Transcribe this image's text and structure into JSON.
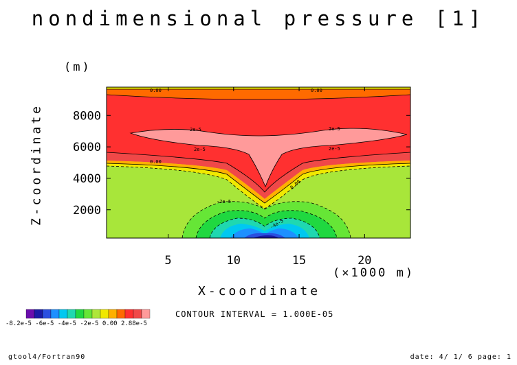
{
  "chart_data": {
    "type": "heatmap",
    "title": "nondimensional pressure [1]",
    "xlabel": "X-coordinate",
    "xunit": "(×1000 m)",
    "ylabel": "Z-coordinate",
    "yunit": "(m)",
    "xlim": [
      0.3,
      23.5
    ],
    "ylim": [
      200,
      9800
    ],
    "x_ticks": [
      5,
      10,
      15,
      20
    ],
    "y_ticks": [
      2000,
      4000,
      6000,
      8000
    ],
    "contour_interval": "CONTOUR INTERVAL = 1.000E-05",
    "contour_labels": [
      "0.00",
      "0.00",
      "2e-5",
      "2e-5",
      "2e-5",
      "2e-5",
      "0.00",
      "0.00",
      "-2e-5",
      "-4e-5"
    ],
    "colorbar": {
      "colors": [
        "#6a0dad",
        "#1a1aa6",
        "#2a4fe0",
        "#1e90ff",
        "#00c8f0",
        "#1fd8b0",
        "#20d840",
        "#66e636",
        "#aee63a",
        "#f0e800",
        "#ffb000",
        "#ff6a00",
        "#ff3030",
        "#f04848",
        "#ff9a9a"
      ],
      "labels": "-8.2e-5  -6e-5 -4e-5 -2e-5   0.00  2.88e-5",
      "min": -8.2e-05,
      "max": 2.88e-05
    }
  },
  "footer": {
    "left": "gtool4/Fortran90",
    "right": "date: 4/ 1/ 6 page: 1"
  }
}
